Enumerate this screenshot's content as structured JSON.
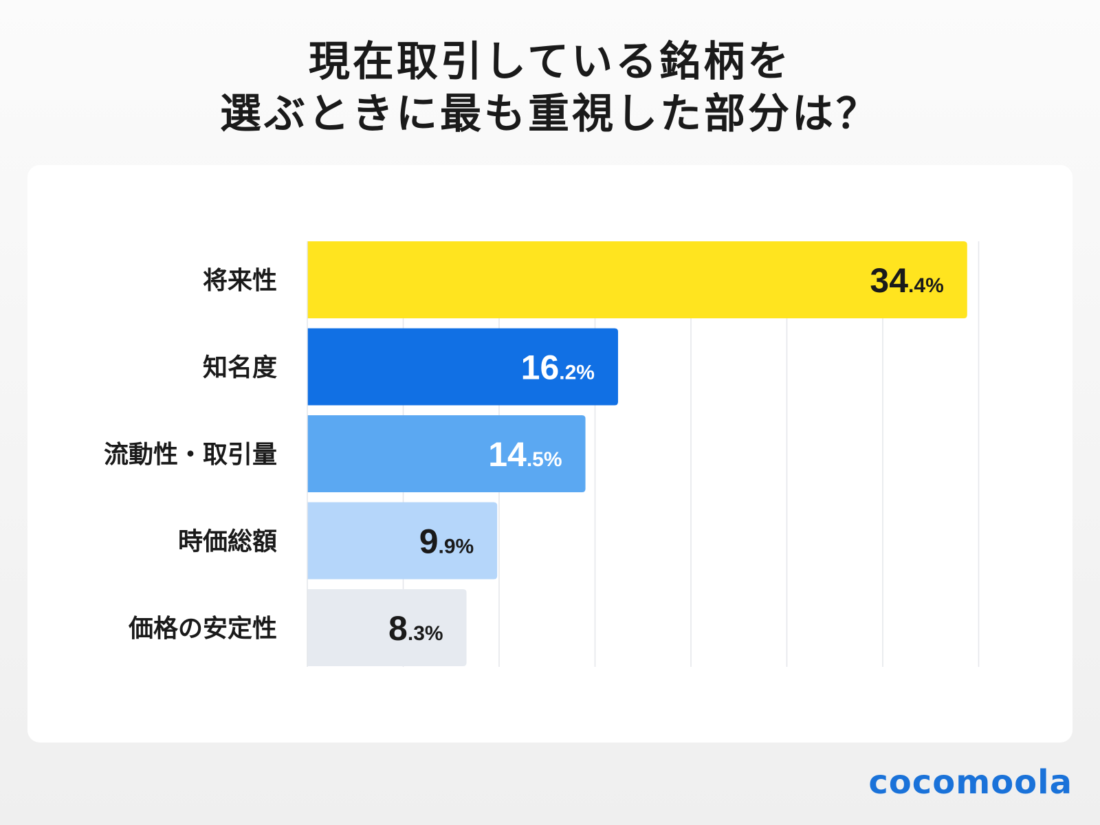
{
  "title": {
    "line1": "現在取引している銘柄を",
    "line2": "選ぶときに最も重視した部分は？"
  },
  "logo": "cocomoola",
  "chart_data": {
    "type": "bar",
    "orientation": "horizontal",
    "categories": [
      "将来性",
      "知名度",
      "流動性・取引量",
      "時価総額",
      "価格の安定性"
    ],
    "values": [
      34.4,
      16.2,
      14.5,
      9.9,
      8.3
    ],
    "unit": "%",
    "colors": [
      "#FFE41F",
      "#1170E4",
      "#5BA8F2",
      "#B5D6FA",
      "#E6EAF0"
    ],
    "label_colors": [
      "#1a1a1a",
      "#ffffff",
      "#ffffff",
      "#1a1a1a",
      "#1a1a1a"
    ],
    "xlim": [
      0,
      35
    ],
    "grid": true,
    "grid_step": 5,
    "title": "",
    "xlabel": "",
    "ylabel": ""
  }
}
